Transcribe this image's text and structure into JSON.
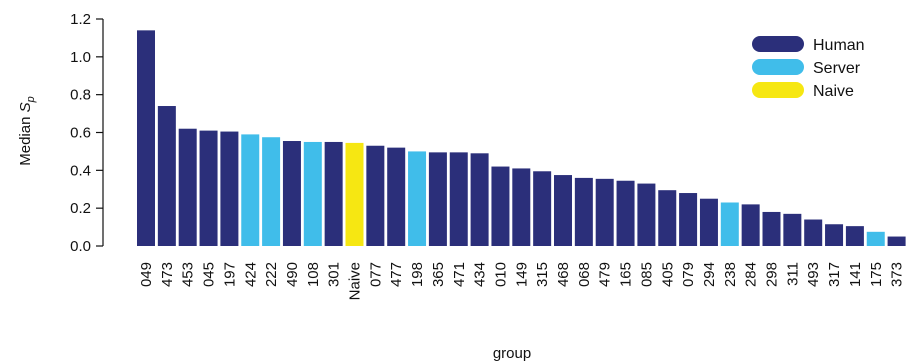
{
  "chart_data": {
    "type": "bar",
    "xlabel": "group",
    "ylabel_main": "Median ",
    "ylabel_symbol": "S",
    "ylabel_subscript": "p",
    "ylim": [
      0,
      1.2
    ],
    "yticks": [
      "0.0",
      "0.2",
      "0.4",
      "0.6",
      "0.8",
      "1.0",
      "1.2"
    ],
    "legend_position": "top-right",
    "legend": [
      {
        "label": "Human",
        "color": "#2b2f7a"
      },
      {
        "label": "Server",
        "color": "#40bdea"
      },
      {
        "label": "Naive",
        "color": "#f6e712"
      }
    ],
    "bars": [
      {
        "group": "049",
        "value": 1.14,
        "type": "Human"
      },
      {
        "group": "473",
        "value": 0.74,
        "type": "Human"
      },
      {
        "group": "453",
        "value": 0.62,
        "type": "Human"
      },
      {
        "group": "045",
        "value": 0.61,
        "type": "Human"
      },
      {
        "group": "197",
        "value": 0.605,
        "type": "Human"
      },
      {
        "group": "424",
        "value": 0.59,
        "type": "Server"
      },
      {
        "group": "222",
        "value": 0.575,
        "type": "Server"
      },
      {
        "group": "490",
        "value": 0.555,
        "type": "Human"
      },
      {
        "group": "108",
        "value": 0.55,
        "type": "Server"
      },
      {
        "group": "301",
        "value": 0.55,
        "type": "Human"
      },
      {
        "group": "Naive",
        "value": 0.545,
        "type": "Naive"
      },
      {
        "group": "077",
        "value": 0.53,
        "type": "Human"
      },
      {
        "group": "477",
        "value": 0.52,
        "type": "Human"
      },
      {
        "group": "198",
        "value": 0.5,
        "type": "Server"
      },
      {
        "group": "365",
        "value": 0.495,
        "type": "Human"
      },
      {
        "group": "471",
        "value": 0.495,
        "type": "Human"
      },
      {
        "group": "434",
        "value": 0.49,
        "type": "Human"
      },
      {
        "group": "010",
        "value": 0.42,
        "type": "Human"
      },
      {
        "group": "149",
        "value": 0.41,
        "type": "Human"
      },
      {
        "group": "315",
        "value": 0.395,
        "type": "Human"
      },
      {
        "group": "468",
        "value": 0.375,
        "type": "Human"
      },
      {
        "group": "068",
        "value": 0.36,
        "type": "Human"
      },
      {
        "group": "479",
        "value": 0.355,
        "type": "Human"
      },
      {
        "group": "165",
        "value": 0.345,
        "type": "Human"
      },
      {
        "group": "085",
        "value": 0.33,
        "type": "Human"
      },
      {
        "group": "405",
        "value": 0.295,
        "type": "Human"
      },
      {
        "group": "079",
        "value": 0.28,
        "type": "Human"
      },
      {
        "group": "294",
        "value": 0.25,
        "type": "Human"
      },
      {
        "group": "238",
        "value": 0.23,
        "type": "Server"
      },
      {
        "group": "284",
        "value": 0.22,
        "type": "Human"
      },
      {
        "group": "298",
        "value": 0.18,
        "type": "Human"
      },
      {
        "group": "311",
        "value": 0.17,
        "type": "Human"
      },
      {
        "group": "493",
        "value": 0.14,
        "type": "Human"
      },
      {
        "group": "317",
        "value": 0.115,
        "type": "Human"
      },
      {
        "group": "141",
        "value": 0.105,
        "type": "Human"
      },
      {
        "group": "175",
        "value": 0.075,
        "type": "Server"
      },
      {
        "group": "373",
        "value": 0.05,
        "type": "Human"
      }
    ]
  }
}
